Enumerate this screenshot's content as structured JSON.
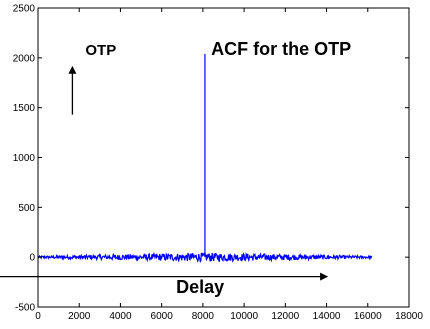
{
  "chart_data": {
    "type": "line",
    "title": "",
    "xlabel": "",
    "ylabel": "",
    "xlim": [
      0,
      18000
    ],
    "ylim": [
      -500,
      2500
    ],
    "x_ticks": [
      0,
      2000,
      4000,
      6000,
      8000,
      10000,
      12000,
      14000,
      16000,
      18000
    ],
    "y_ticks": [
      -500,
      0,
      500,
      1000,
      1500,
      2000,
      2500
    ],
    "grid": false,
    "series": [
      {
        "color": "#0000ff",
        "noise_band": {
          "x_start": 0,
          "x_end": 16200,
          "amplitude_edge": 12,
          "amplitude_center": 45
        },
        "peak": {
          "x": 8100,
          "y": 2040
        }
      }
    ],
    "annotations": [
      {
        "text": "OTP",
        "x": 2300,
        "y": 2030,
        "size": "medium",
        "arrow": "up"
      },
      {
        "text": "ACF for the OTP",
        "x": 8400,
        "y": 2030,
        "size": "large",
        "arrow": "none"
      },
      {
        "text": "Delay",
        "x": 6700,
        "y": -360,
        "size": "large",
        "arrow": "right"
      }
    ]
  }
}
